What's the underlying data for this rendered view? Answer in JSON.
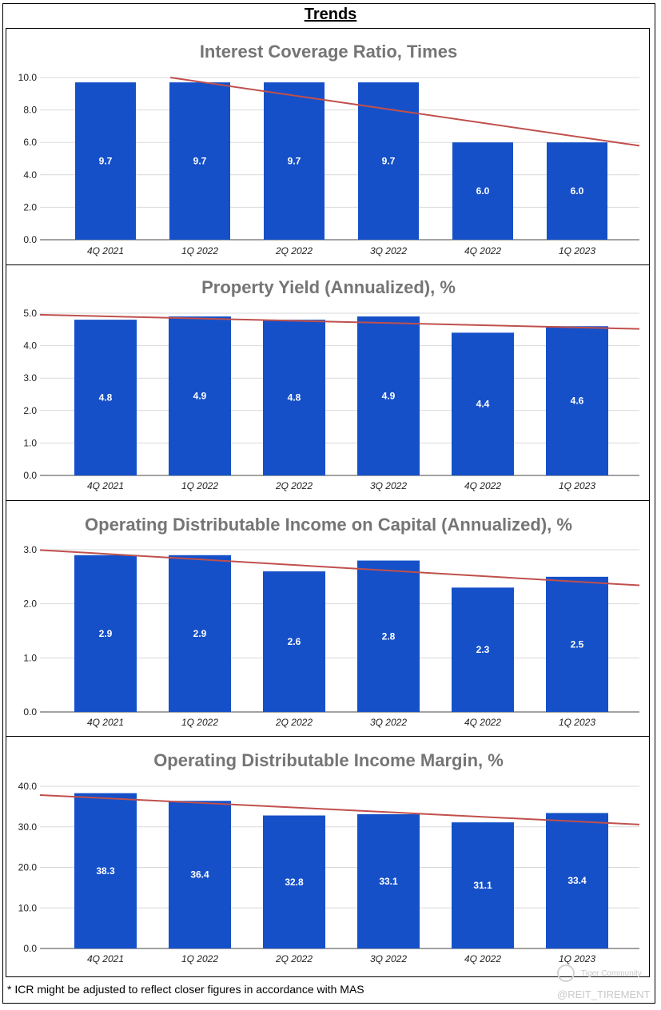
{
  "page_title": "Trends",
  "footnote": "* ICR might be adjusted to reflect closer figures in accordance with MAS",
  "watermark": {
    "community": "Tiger Community",
    "handle": "@REIT_TIREMENT",
    "logo_icon": "tiger-community-logo-icon"
  },
  "colors": {
    "bar": "#1550c8",
    "trendline": "#c0504d",
    "title": "#757575",
    "grid": "#d9d9d9"
  },
  "chart_data": [
    {
      "type": "bar",
      "title": "Interest Coverage Ratio, Times",
      "xlabel": "",
      "ylabel": "",
      "categories": [
        "4Q 2021",
        "1Q 2022",
        "2Q 2022",
        "3Q 2022",
        "4Q 2022",
        "1Q 2023"
      ],
      "values": [
        9.7,
        9.7,
        9.7,
        9.7,
        6.0,
        6.0
      ],
      "value_labels": [
        "9.7",
        "9.7",
        "9.7",
        "9.7",
        "6.0",
        "6.0"
      ],
      "ylim": [
        0,
        10
      ],
      "yticks": [
        "0.0",
        "2.0",
        "4.0",
        "6.0",
        "8.0",
        "10.0"
      ],
      "trendline": true,
      "grid": true,
      "legend": "none"
    },
    {
      "type": "bar",
      "title": "Property Yield (Annualized), %",
      "xlabel": "",
      "ylabel": "",
      "categories": [
        "4Q 2021",
        "1Q 2022",
        "2Q 2022",
        "3Q 2022",
        "4Q 2022",
        "1Q 2023"
      ],
      "values": [
        4.8,
        4.9,
        4.8,
        4.9,
        4.4,
        4.6
      ],
      "value_labels": [
        "4.8",
        "4.9",
        "4.8",
        "4.9",
        "4.4",
        "4.6"
      ],
      "ylim": [
        0,
        5
      ],
      "yticks": [
        "0.0",
        "1.0",
        "2.0",
        "3.0",
        "4.0",
        "5.0"
      ],
      "trendline": true,
      "grid": true,
      "legend": "none"
    },
    {
      "type": "bar",
      "title": "Operating Distributable Income on Capital (Annualized), %",
      "xlabel": "",
      "ylabel": "",
      "categories": [
        "4Q 2021",
        "1Q 2022",
        "2Q 2022",
        "3Q 2022",
        "4Q 2022",
        "1Q 2023"
      ],
      "values": [
        2.9,
        2.9,
        2.6,
        2.8,
        2.3,
        2.5
      ],
      "value_labels": [
        "2.9",
        "2.9",
        "2.6",
        "2.8",
        "2.3",
        "2.5"
      ],
      "ylim": [
        0,
        3
      ],
      "yticks": [
        "0.0",
        "1.0",
        "2.0",
        "3.0"
      ],
      "trendline": true,
      "grid": true,
      "legend": "none"
    },
    {
      "type": "bar",
      "title": "Operating Distributable Income Margin, %",
      "xlabel": "",
      "ylabel": "",
      "categories": [
        "4Q 2021",
        "1Q 2022",
        "2Q 2022",
        "3Q 2022",
        "4Q 2022",
        "1Q 2023"
      ],
      "values": [
        38.3,
        36.4,
        32.8,
        33.1,
        31.1,
        33.4
      ],
      "value_labels": [
        "38.3",
        "36.4",
        "32.8",
        "33.1",
        "31.1",
        "33.4"
      ],
      "ylim": [
        0,
        40
      ],
      "yticks": [
        "0.0",
        "10.0",
        "20.0",
        "30.0",
        "40.0"
      ],
      "trendline": true,
      "grid": true,
      "legend": "none"
    }
  ]
}
